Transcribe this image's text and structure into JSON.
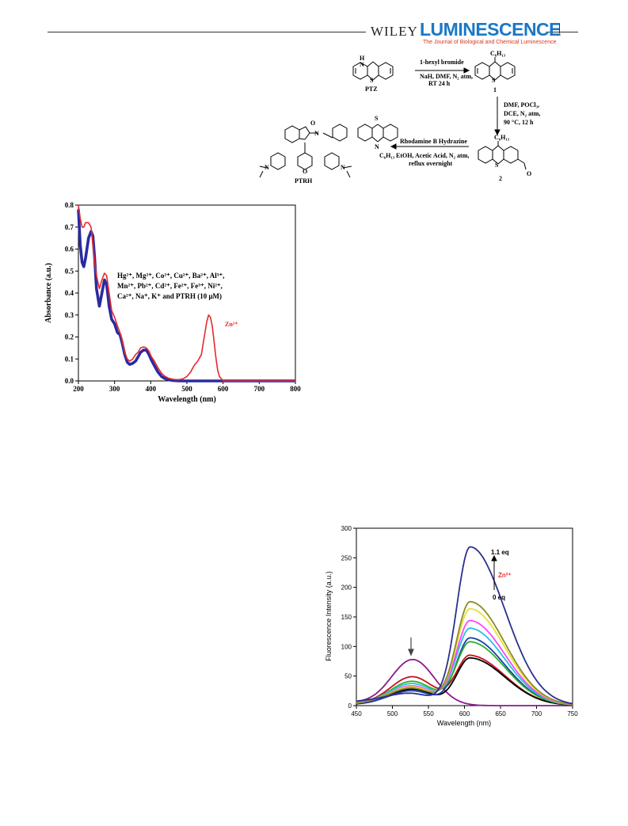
{
  "header": {
    "publisher": "WILEY",
    "journal": "LUMINESCENCE",
    "journal_subtitle": "The Journal of Biological and Chemical Luminescence"
  },
  "scheme": {
    "ptz_label": "PTZ",
    "ptz_atoms": {
      "nh": "H",
      "n": "N",
      "s": "S"
    },
    "step1": {
      "reagent": "1-hexyl bromide",
      "conditions1": "NaH, DMF, N₂ atm,",
      "conditions2": "RT 24 h"
    },
    "cmpd1_label": "1",
    "hexyl": "C₆H₁₃",
    "step2": {
      "line1": "DMF, POCl₃,",
      "line2": "DCE, N₂ atm,",
      "line3": "90 °C, 12 h"
    },
    "cmpd2_label": "2",
    "aldehyde_o": "O",
    "step3": {
      "reagent": "Rhodamine B Hydrazine",
      "line1": "EtOH, Acetic Acid, N₂ atm,",
      "line2": "reflux overnight"
    },
    "ptrh_label": "PTRH",
    "ptrh_atoms": {
      "o_carbonyl": "O",
      "n_hydrazone": "N",
      "n2": "N",
      "n_diethyl_left": "N",
      "n_diethyl_right": "N",
      "o_xanthene": "O"
    }
  },
  "uv_chart": {
    "annotation_lines": [
      "Hg²⁺, Mg²⁺, Co²⁺, Cu²⁺, Ba²⁺, Al³⁺,",
      "Mn²⁺, Pb²⁺, Cd²⁺, Fe²⁺, Fe³⁺, Ni²⁺,",
      "Ca²⁺, Na⁺, K⁺ and PTRH (10 μM)"
    ],
    "zn_label": "Zn²⁺"
  },
  "fl_chart": {
    "eq_top": "1.1 eq",
    "eq_bottom": "0 eq",
    "zn_label": "Zn²⁺"
  },
  "chart_data": [
    {
      "type": "line",
      "title": "",
      "xlabel": "Wavelength (nm)",
      "ylabel": "Absorbance (a.u.)",
      "xlim": [
        200,
        800
      ],
      "ylim": [
        0.0,
        0.8
      ],
      "xticks": [
        200,
        300,
        400,
        500,
        600,
        700,
        800
      ],
      "yticks": [
        0.0,
        0.1,
        0.2,
        0.3,
        0.4,
        0.5,
        0.6,
        0.7,
        0.8
      ],
      "legend": "none",
      "grid": false,
      "series": [
        {
          "name": "PTRH + metal ions",
          "color": "#2a2aa0",
          "x": [
            200,
            205,
            210,
            215,
            220,
            228,
            235,
            240,
            245,
            250,
            258,
            265,
            272,
            278,
            285,
            292,
            300,
            308,
            315,
            320,
            328,
            335,
            342,
            350,
            358,
            365,
            372,
            380,
            388,
            395,
            402,
            410,
            420,
            430,
            440,
            450,
            460,
            480,
            500,
            520,
            540,
            560,
            580,
            600,
            650,
            700,
            800
          ],
          "y": [
            0.78,
            0.62,
            0.54,
            0.52,
            0.56,
            0.65,
            0.68,
            0.66,
            0.56,
            0.42,
            0.34,
            0.4,
            0.46,
            0.44,
            0.34,
            0.28,
            0.26,
            0.22,
            0.21,
            0.18,
            0.12,
            0.085,
            0.075,
            0.08,
            0.09,
            0.11,
            0.13,
            0.14,
            0.14,
            0.12,
            0.095,
            0.07,
            0.04,
            0.02,
            0.01,
            0.005,
            0.002,
            0.0,
            0.0,
            0.0,
            0.0,
            0.0,
            0.0,
            0.0,
            0.0,
            0.0,
            0.0
          ]
        },
        {
          "name": "Zn²⁺",
          "color": "#e8282a",
          "x": [
            200,
            205,
            210,
            215,
            220,
            228,
            235,
            240,
            245,
            250,
            258,
            265,
            272,
            278,
            285,
            292,
            300,
            308,
            315,
            320,
            328,
            335,
            342,
            350,
            358,
            365,
            372,
            380,
            388,
            395,
            402,
            410,
            420,
            430,
            440,
            450,
            460,
            470,
            480,
            490,
            500,
            510,
            520,
            530,
            540,
            548,
            555,
            560,
            565,
            570,
            575,
            580,
            585,
            590,
            600,
            650,
            700,
            800
          ],
          "y": [
            0.8,
            0.74,
            0.7,
            0.7,
            0.72,
            0.72,
            0.7,
            0.62,
            0.54,
            0.48,
            0.42,
            0.46,
            0.49,
            0.48,
            0.4,
            0.32,
            0.29,
            0.25,
            0.22,
            0.19,
            0.13,
            0.1,
            0.09,
            0.1,
            0.12,
            0.13,
            0.15,
            0.155,
            0.15,
            0.135,
            0.11,
            0.09,
            0.06,
            0.035,
            0.02,
            0.012,
            0.008,
            0.006,
            0.006,
            0.01,
            0.02,
            0.04,
            0.07,
            0.09,
            0.12,
            0.2,
            0.27,
            0.3,
            0.29,
            0.25,
            0.18,
            0.11,
            0.05,
            0.02,
            0.0,
            0.0,
            0.0,
            0.0
          ]
        }
      ]
    },
    {
      "type": "line",
      "title": "",
      "xlabel": "Wavelength (nm)",
      "ylabel": "Fluorescence Intensity (a.u.)",
      "xlim": [
        450,
        750
      ],
      "ylim": [
        0,
        300
      ],
      "xticks": [
        450,
        500,
        550,
        600,
        650,
        700,
        750
      ],
      "yticks": [
        0,
        50,
        100,
        150,
        200,
        250,
        300
      ],
      "legend": "none",
      "grid": false,
      "series": [
        {
          "color": "#8b1a8b",
          "p1": 78,
          "p2": 0
        },
        {
          "color": "#c8101e",
          "p1": 48,
          "p2": 84
        },
        {
          "color": "#000000",
          "p1": 27,
          "p2": 80
        },
        {
          "color": "#1a3fa8",
          "p1": 24,
          "p2": 114
        },
        {
          "color": "#2ab02a",
          "p1": 40,
          "p2": 107
        },
        {
          "color": "#22c4e0",
          "p1": 36,
          "p2": 130
        },
        {
          "color": "#ff44ff",
          "p1": 32,
          "p2": 143
        },
        {
          "color": "#e8e030",
          "p1": 30,
          "p2": 163
        },
        {
          "color": "#8a8a28",
          "p1": 28,
          "p2": 175
        },
        {
          "color": "#2a3090",
          "p1": 18,
          "p2": 268
        }
      ]
    }
  ]
}
